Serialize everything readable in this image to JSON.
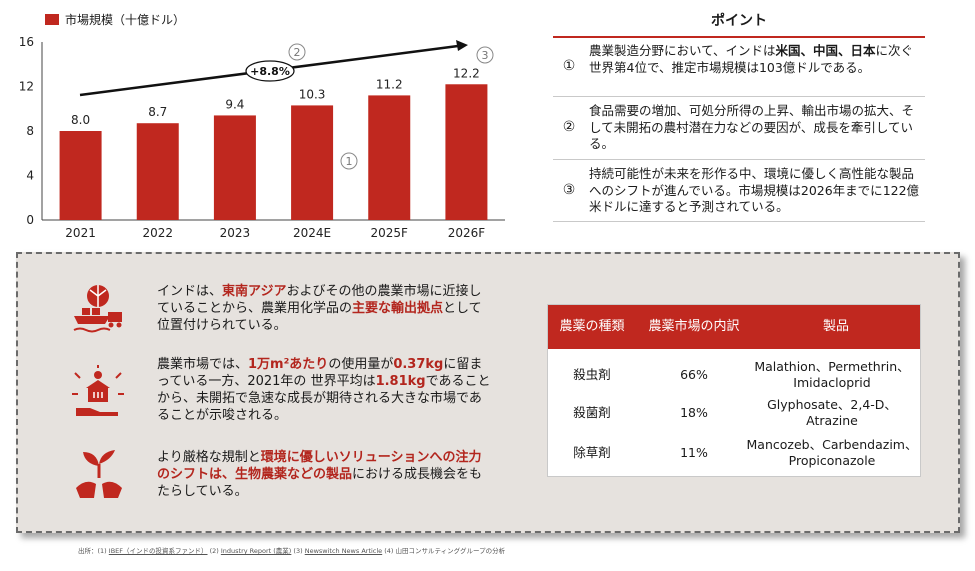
{
  "colors": {
    "accent": "#c0281f",
    "panel_bg": "#e6e2de"
  },
  "legend_label": "市場規模（十億ドル）",
  "chart_data": {
    "type": "bar",
    "categories": [
      "2021",
      "2022",
      "2023",
      "2024E",
      "2025F",
      "2026F"
    ],
    "values": [
      8.0,
      8.7,
      9.4,
      10.3,
      11.2,
      12.2
    ],
    "value_labels": [
      "8.0",
      "8.7",
      "9.4",
      "10.3",
      "11.2",
      "12.2"
    ],
    "ylim": [
      0,
      16
    ],
    "yticks": [
      "0",
      "4",
      "8",
      "12",
      "16"
    ],
    "series": [
      {
        "name": "市場規模（十億ドル）",
        "values": [
          8.0,
          8.7,
          9.4,
          10.3,
          11.2,
          12.2
        ]
      }
    ],
    "annotations": {
      "growth": "+8.8%",
      "marker_1": "①",
      "marker_2": "②",
      "marker_3": "③"
    }
  },
  "points": {
    "title": "ポイント",
    "items": [
      {
        "num": "①",
        "pre": "農業製造分野において、インドは",
        "bold": "米国、中国、日本",
        "post": "に次ぐ世界第4位で、推定市場規模は103億ドルである。"
      },
      {
        "num": "②",
        "pre": "食品需要の増加、可処分所得の上昇、輸出市場の拡大、そして未開拓の農村潜在力などの要因が、成長を牽引している。",
        "bold": "",
        "post": ""
      },
      {
        "num": "③",
        "pre": "持続可能性が未来を形作る中、環境に優しく高性能な製品へのシフトが進んでいる。市場規模は2026年までに122億米ドルに達すると予測されている。",
        "bold": "",
        "post": ""
      }
    ]
  },
  "bullets": [
    {
      "parts": [
        {
          "t": "インドは、"
        },
        {
          "t": "東南アジア",
          "h": true
        },
        {
          "t": "およびその他の農業市場に近接していることから、農業用化学品の"
        },
        {
          "t": "主要な輸出拠点",
          "h": true
        },
        {
          "t": "として位置付けられている。"
        }
      ]
    },
    {
      "parts": [
        {
          "t": "農業市場では、"
        },
        {
          "t": "1万m²あたり",
          "h": true
        },
        {
          "t": "の使用量が"
        },
        {
          "t": "0.37kg",
          "h": true
        },
        {
          "t": "に留まっている一方、2021年の 世界平均は"
        },
        {
          "t": "1.81kg",
          "h": true
        },
        {
          "t": "であることから、未開拓で急速な成長が期待される大きな市場であることが示唆される。"
        }
      ]
    },
    {
      "parts": [
        {
          "t": "より厳格な規制と"
        },
        {
          "t": "環境に優しいソリューションへの注力のシフトは、生物農薬などの製品",
          "h": true
        },
        {
          "t": "における成長機会をもたらしている。"
        }
      ]
    }
  ],
  "table": {
    "headers": [
      "農薬の種類",
      "農薬市場の内訳",
      "製品"
    ],
    "rows": [
      {
        "type": "殺虫剤",
        "share": "66%",
        "products": "Malathion、Permethrin、Imidacloprid"
      },
      {
        "type": "殺菌剤",
        "share": "18%",
        "products": "Glyphosate、2,4-D、Atrazine"
      },
      {
        "type": "除草剤",
        "share": "11%",
        "products": "Mancozeb、Carbendazim、Propiconazole"
      }
    ]
  },
  "source": {
    "prefix": "出所：(1) ",
    "s1": "IBEF（インドの投資系ファンド）",
    "mid1": " (2) ",
    "s2": "Industry Report (農業)",
    "mid2": " (3) ",
    "s3": "Newswitch News Article",
    "suffix": " (4) 山田コンサルティンググループの分析"
  }
}
